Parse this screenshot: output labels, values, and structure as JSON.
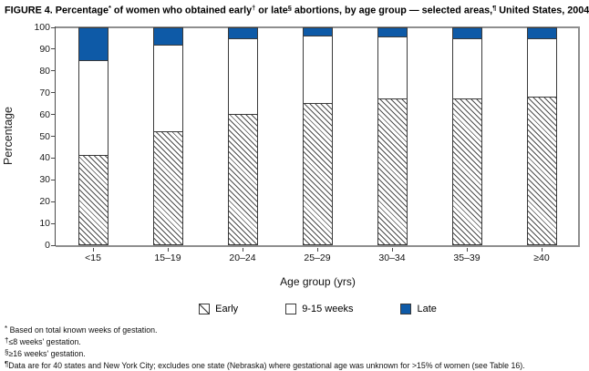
{
  "figure": {
    "title_plain": "FIGURE 4. Percentage* of women who obtained early† or late§ abortions, by age group — selected areas,¶ United States, 2004",
    "title_segments": [
      {
        "text": "FIGURE 4. Percentage"
      },
      {
        "text": "*",
        "sup": true
      },
      {
        "text": " of women who obtained early"
      },
      {
        "text": "†",
        "sup": true
      },
      {
        "text": " or late"
      },
      {
        "text": "§",
        "sup": true
      },
      {
        "text": " abortions, by age group — selected areas,"
      },
      {
        "text": "¶",
        "sup": true
      },
      {
        "text": " United States, 2004"
      }
    ],
    "footnotes": [
      {
        "marker": "*",
        "text": " Based on total known weeks of gestation."
      },
      {
        "marker": "†",
        "text": "≤8 weeks' gestation."
      },
      {
        "marker": "§",
        "text": "≥16 weeks' gestation."
      },
      {
        "marker": "¶",
        "text": "Data are for 40 states and New York City; excludes one state (Nebraska) where gestational age was unknown for >15% of women (see Table 16)."
      }
    ]
  },
  "chart_data": {
    "type": "bar",
    "stacked": true,
    "title": "FIGURE 4. Percentage of women who obtained early or late abortions, by age group — selected areas, United States, 2004",
    "categories": [
      "<15",
      "15–19",
      "20–24",
      "25–29",
      "30–34",
      "35–39",
      "≥40"
    ],
    "series": [
      {
        "name": "Early",
        "style": "hatched",
        "values": [
          41,
          52,
          60,
          65,
          67,
          67,
          68
        ]
      },
      {
        "name": "9-15 weeks",
        "style": "open",
        "values": [
          44,
          40,
          35,
          31,
          29,
          28,
          27
        ]
      },
      {
        "name": "Late",
        "style": "solid",
        "values": [
          15,
          8,
          5,
          4,
          4,
          5,
          5
        ]
      }
    ],
    "xlabel": "Age group (yrs)",
    "ylabel": "Percentage",
    "ylim": [
      0,
      100
    ],
    "yticks": [
      0,
      10,
      20,
      30,
      40,
      50,
      60,
      70,
      80,
      90,
      100
    ],
    "grid": false,
    "legend_position": "bottom",
    "colors": {
      "late_blue": "#0e5aa7",
      "bar_border": "#3a3a3a",
      "hatch_line": "#4d4d4d",
      "frame_gray": "#8e8e8e",
      "axis_dark": "#4a4a4a"
    }
  }
}
